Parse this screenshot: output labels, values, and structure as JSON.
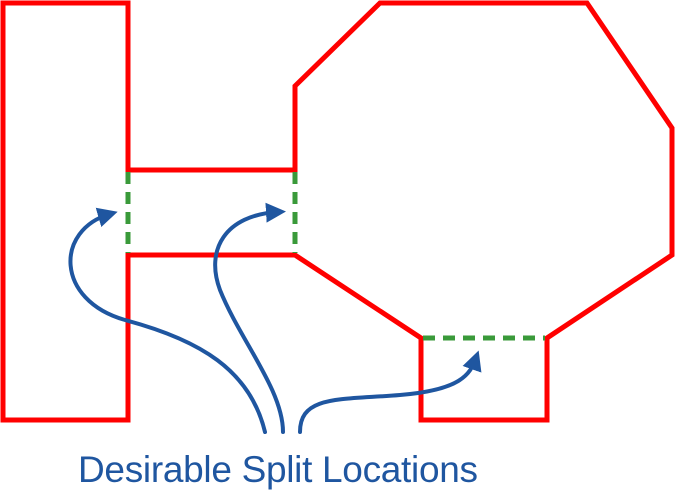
{
  "caption": "Desirable Split Locations",
  "colors": {
    "outline": "#ff0000",
    "split": "#3a9a3a",
    "arrow": "#1f56a0",
    "caption": "#1f56a0"
  }
}
